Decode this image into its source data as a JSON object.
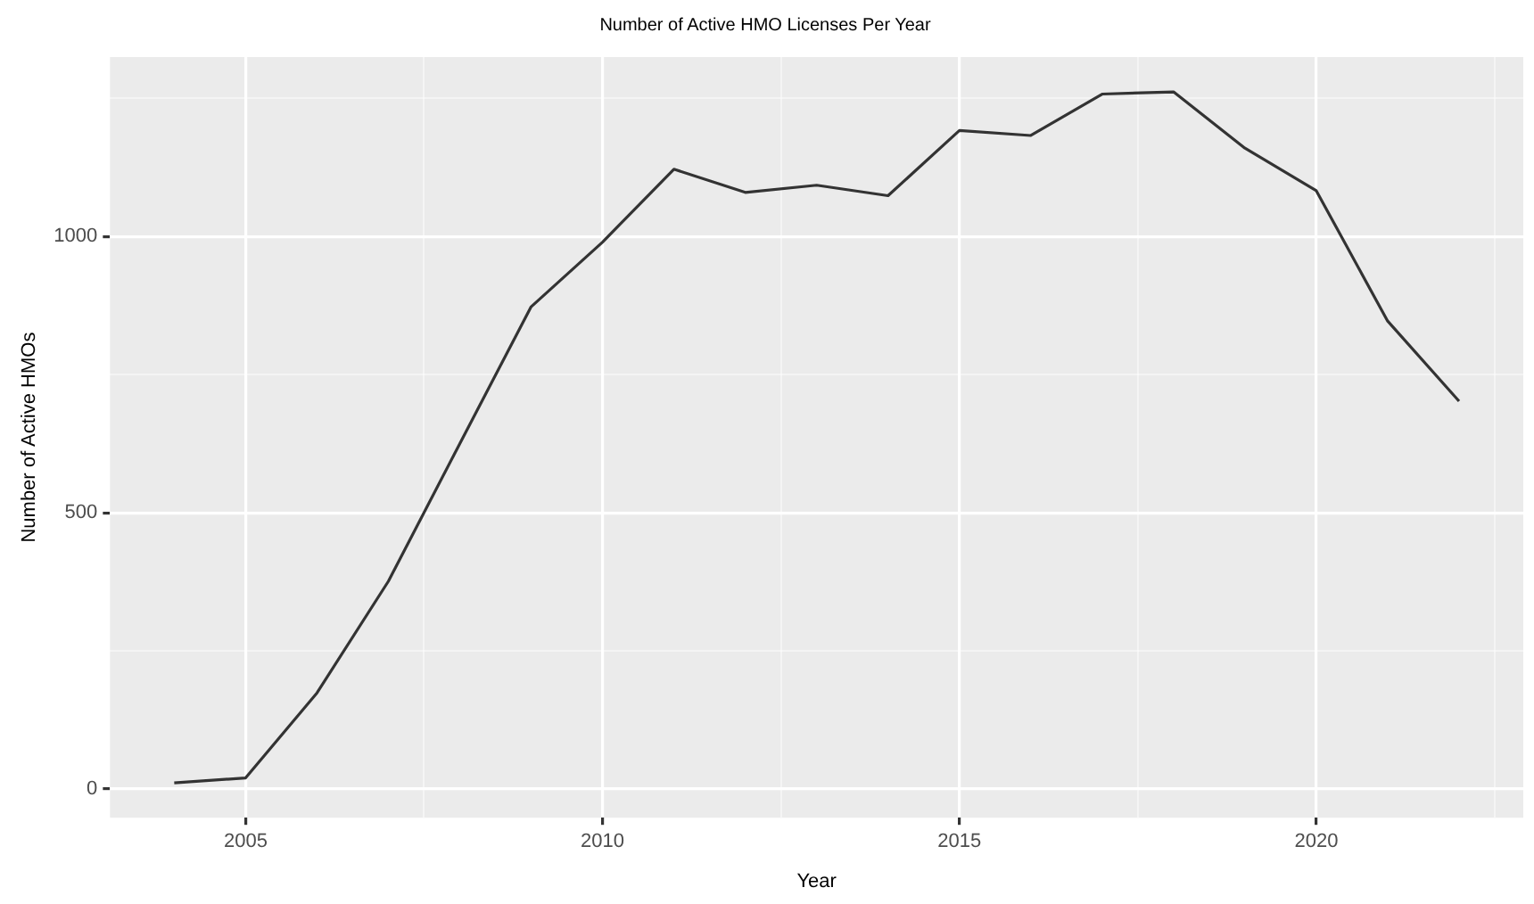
{
  "chart_data": {
    "type": "line",
    "title": "Number of Active HMO Licenses Per Year",
    "xlabel": "Year",
    "ylabel": "Number of Active HMOs",
    "x": [
      2004,
      2005,
      2006,
      2007,
      2008,
      2009,
      2010,
      2011,
      2012,
      2013,
      2014,
      2015,
      2016,
      2017,
      2018,
      2019,
      2020,
      2021,
      2022
    ],
    "series": [
      {
        "color": "#333333",
        "values": [
          11,
          20,
          174,
          376,
          625,
          873,
          990,
          1122,
          1080,
          1093,
          1074,
          1192,
          1183,
          1258,
          1262,
          1160,
          1083,
          847,
          702
        ]
      }
    ],
    "xlim": [
      2003.1,
      2022.9
    ],
    "ylim": [
      -52,
      1325
    ],
    "xticks": [
      2005,
      {
        "value": 2007.5,
        "label": null
      },
      2010,
      {
        "value": 2012.5,
        "label": null
      },
      2015,
      {
        "value": 2017.5,
        "label": null
      },
      2020,
      {
        "value": 2022.5,
        "label": null
      }
    ],
    "yticks": [
      0,
      {
        "value": 250,
        "label": null
      },
      500,
      {
        "value": 750,
        "label": null
      },
      1000,
      {
        "value": 1250,
        "label": null
      }
    ],
    "grid": true,
    "legend": false,
    "marker": "none",
    "line_style": "solid"
  }
}
